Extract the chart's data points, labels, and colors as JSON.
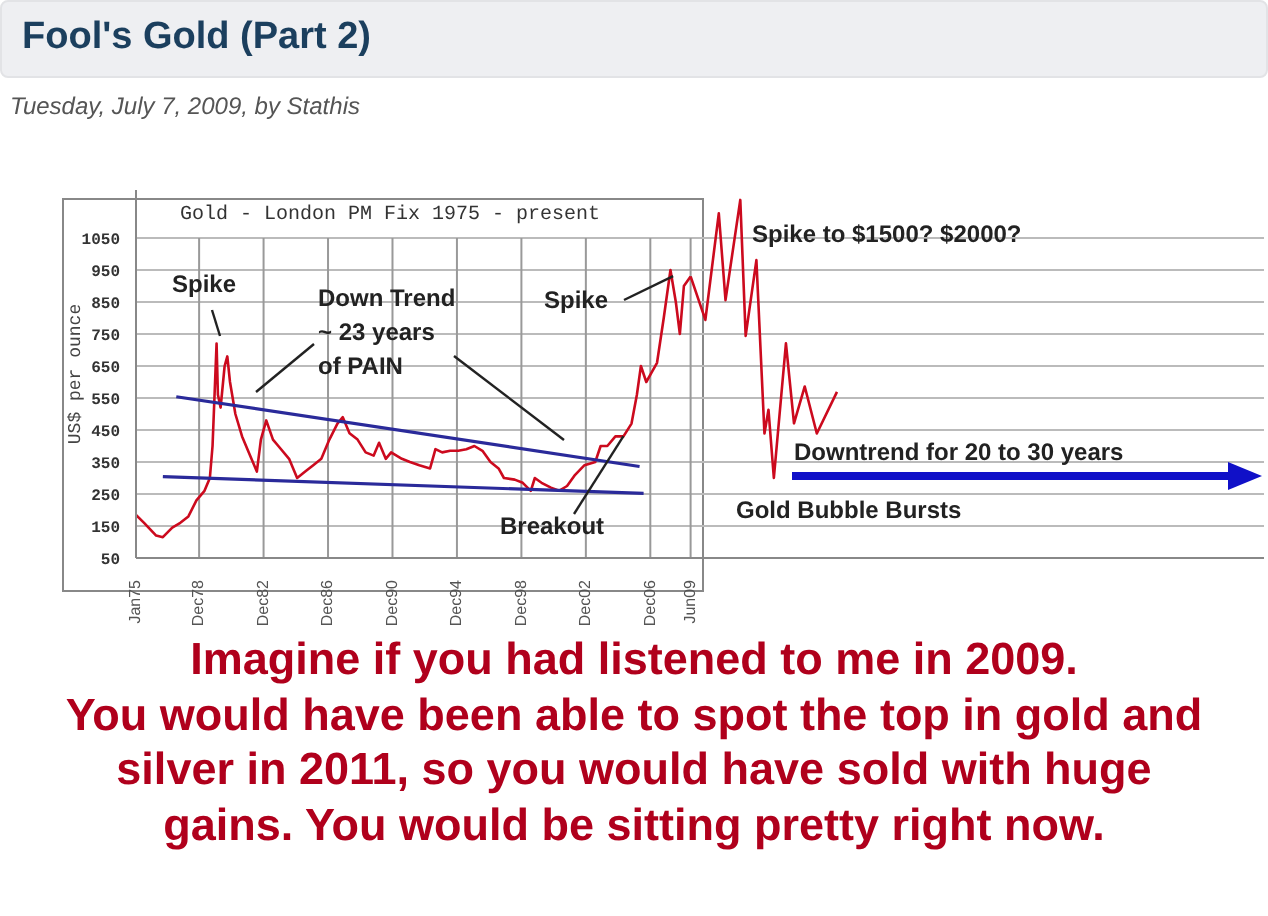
{
  "chart_data": {
    "type": "line",
    "title": "Fool's Gold (Part 2)",
    "subtitle": "Tuesday, July 7, 2009, by Stathis",
    "ylabel": "US$ per ounce",
    "xlim": [
      "1975-01",
      "2045-01"
    ],
    "xticks": [
      {
        "value": "1975-01",
        "label": "Jan75"
      },
      {
        "value": "1978-12",
        "label": "Dec78"
      },
      {
        "value": "1982-12",
        "label": "Dec82"
      },
      {
        "value": "1986-12",
        "label": "Dec86"
      },
      {
        "value": "1990-12",
        "label": "Dec90"
      },
      {
        "value": "1994-12",
        "label": "Dec94"
      },
      {
        "value": "1998-12",
        "label": "Dec98"
      },
      {
        "value": "2002-12",
        "label": "Dec02"
      },
      {
        "value": "2006-12",
        "label": "Dec06"
      },
      {
        "value": "2009-06",
        "label": "Jun09"
      }
    ],
    "ylim": [
      50,
      1200
    ],
    "yticks": [
      50,
      150,
      250,
      350,
      450,
      550,
      650,
      750,
      850,
      950,
      1050
    ],
    "grid": true,
    "marker": "none",
    "line_style": "solid",
    "series": [
      {
        "color": "#cc0a1e",
        "x": [
          "1975-01",
          "1975-07",
          "1976-04",
          "1976-09",
          "1977-04",
          "1977-10",
          "1978-04",
          "1978-10",
          "1979-04",
          "1979-08",
          "1979-10",
          "1980-01",
          "1980-02",
          "1980-04",
          "1980-07",
          "1980-09",
          "1980-11",
          "1981-03",
          "1981-08",
          "1982-01",
          "1982-07",
          "1982-10",
          "1983-02",
          "1983-07",
          "1983-11",
          "1984-07",
          "1985-01",
          "1985-07",
          "1986-01",
          "1986-07",
          "1987-01",
          "1987-07",
          "1987-11",
          "1988-04",
          "1988-10",
          "1989-04",
          "1989-10",
          "1990-02",
          "1990-07",
          "1990-11",
          "1991-07",
          "1992-01",
          "1992-08",
          "1993-04",
          "1993-08",
          "1994-01",
          "1994-07",
          "1995-01",
          "1995-07",
          "1996-01",
          "1996-07",
          "1997-01",
          "1997-07",
          "1997-11",
          "1998-07",
          "1999-01",
          "1999-07",
          "1999-10",
          "2000-03",
          "2000-10",
          "2001-04",
          "2001-10",
          "2002-04",
          "2002-11",
          "2003-07",
          "2003-11",
          "2004-04",
          "2004-10",
          "2005-04",
          "2005-10",
          "2006-02",
          "2006-05",
          "2006-09",
          "2007-01",
          "2007-05",
          "2007-10",
          "2008-03",
          "2008-07",
          "2008-10",
          "2009-01",
          "2009-06"
        ],
        "values": [
          185,
          160,
          120,
          115,
          145,
          160,
          180,
          230,
          260,
          300,
          400,
          720,
          560,
          520,
          650,
          680,
          600,
          500,
          430,
          380,
          320,
          420,
          480,
          420,
          400,
          360,
          300,
          320,
          340,
          360,
          420,
          470,
          490,
          440,
          420,
          380,
          370,
          410,
          360,
          380,
          360,
          350,
          340,
          330,
          390,
          380,
          385,
          385,
          390,
          400,
          385,
          350,
          330,
          300,
          295,
          285,
          260,
          300,
          285,
          270,
          260,
          275,
          310,
          340,
          350,
          400,
          400,
          430,
          430,
          470,
          560,
          650,
          600,
          630,
          660,
          800,
          950,
          850,
          750,
          900,
          930
        ]
      },
      {
        "type": "line",
        "color": "#cc0a1e",
        "x": [
          "2009-06",
          "2010-05",
          "2011-03",
          "2011-08",
          "2012-07",
          "2012-11",
          "2013-07",
          "2014-01",
          "2014-04",
          "2014-08",
          "2015-05",
          "2015-11",
          "2016-07",
          "2017-04",
          "2018-07"
        ],
        "values": [
          930,
          794,
          1127,
          856,
          1169,
          744,
          981,
          439,
          513,
          300,
          721,
          471,
          586,
          439,
          569
        ]
      },
      {
        "type": "line",
        "color": "#2a2a9a",
        "x": [
          "1977-07",
          "2006-04"
        ],
        "values": [
          554,
          336
        ]
      },
      {
        "type": "line",
        "color": "#2a2a9a",
        "x": [
          "1976-09",
          "2006-07"
        ],
        "values": [
          304,
          252
        ]
      }
    ],
    "annotations": [
      "Gold - London PM Fix 1975 - present",
      "Spike",
      "Down Trend\n~ 23 years\nof PAIN",
      {
        "text": "Spike",
        "x": "2008-05",
        "y": 931
      },
      {
        "text": "Breakout",
        "x": "2005-04",
        "y": 431
      },
      "Spike to $1500?  $2000?",
      "Downtrend for 20 to 30 years",
      "Gold Bubble Bursts",
      "Imagine if you had listened to me in 2009.",
      "You would have been able to spot the top in gold and silver in 2011, so you would have sold with huge gains. You would be sitting pretty right now."
    ]
  }
}
